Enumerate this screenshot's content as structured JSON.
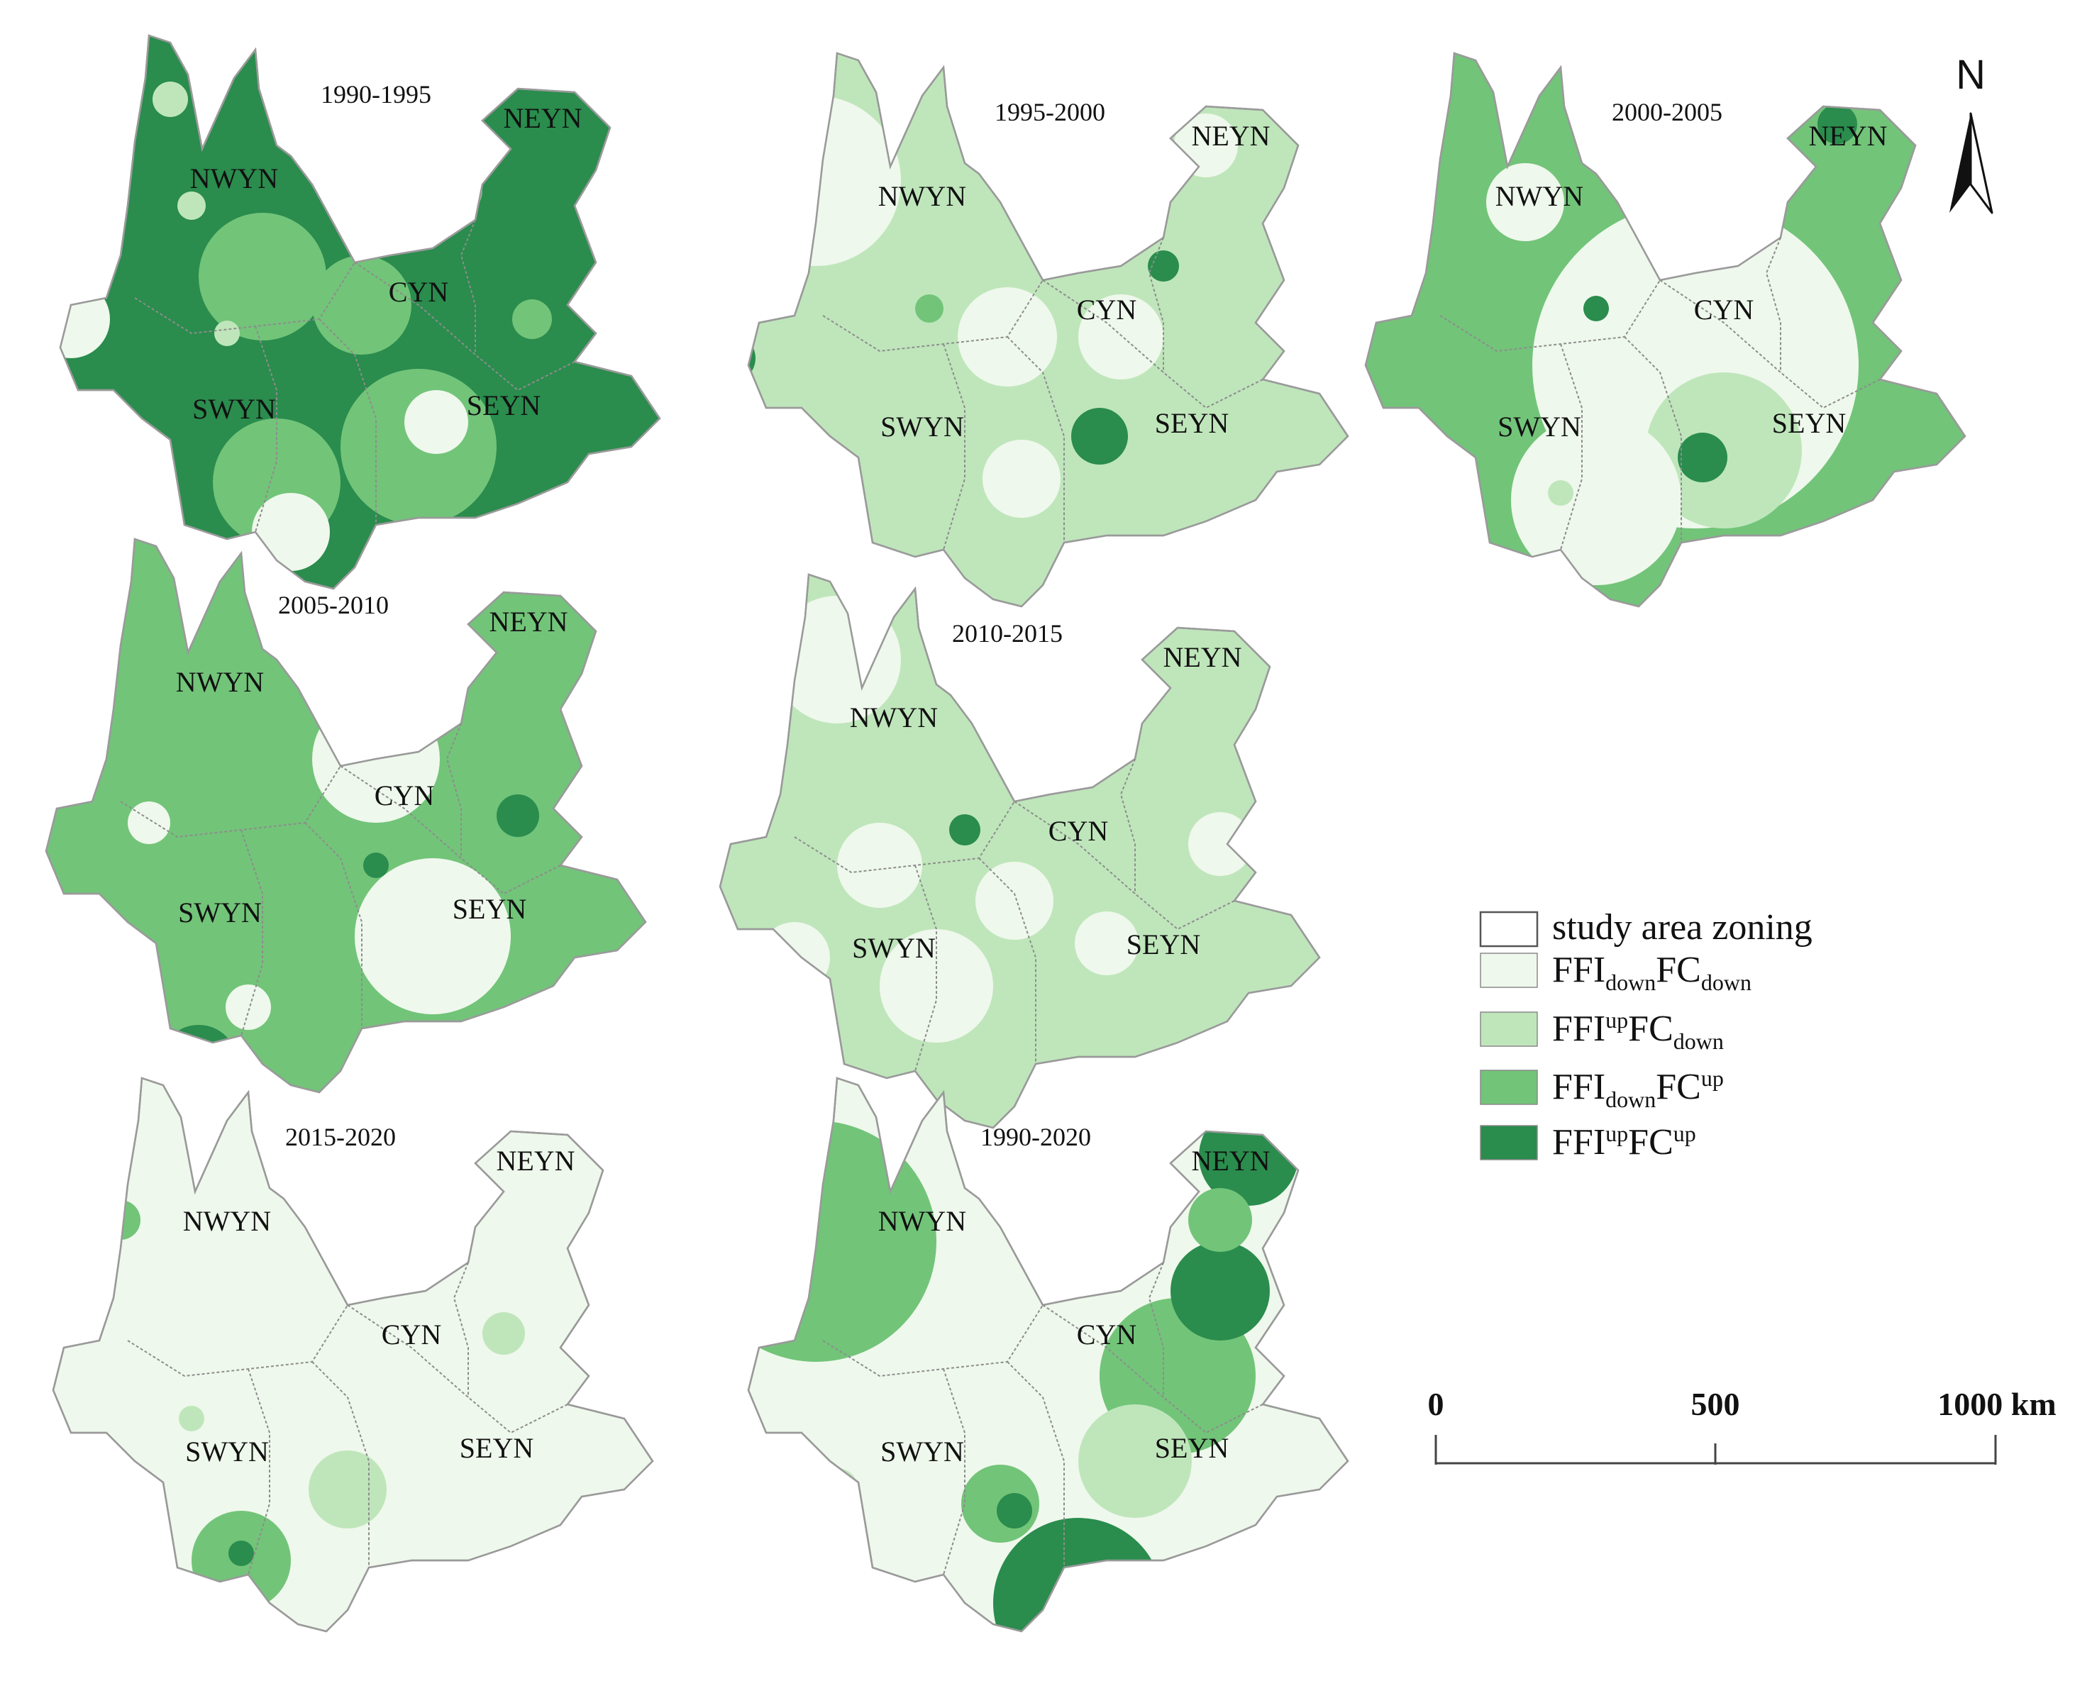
{
  "colors": {
    "fdown_fcdown": "#eff8ec",
    "fup_fcdown": "#bfe6bb",
    "fdown_fcup": "#72c479",
    "fup_fcup": "#2a8c4d",
    "zoning": "#ffffff",
    "outline": "#9a9a9a"
  },
  "maps": [
    {
      "period": "1990-1995",
      "base": "fup_fcup",
      "zones": [
        "NWYN",
        "NEYN",
        "CYN",
        "SWYN",
        "SEYN"
      ]
    },
    {
      "period": "1995-2000",
      "base": "fup_fcdown",
      "zones": [
        "NWYN",
        "NEYN",
        "CYN",
        "SWYN",
        "SEYN"
      ]
    },
    {
      "period": "2000-2005",
      "base": "fdown_fcup",
      "zones": [
        "NWYN",
        "NEYN",
        "CYN",
        "SWYN",
        "SEYN"
      ]
    },
    {
      "period": "2005-2010",
      "base": "fdown_fcup",
      "zones": [
        "NWYN",
        "NEYN",
        "CYN",
        "SWYN",
        "SEYN"
      ]
    },
    {
      "period": "2010-2015",
      "base": "fup_fcdown",
      "zones": [
        "NWYN",
        "NEYN",
        "CYN",
        "SWYN",
        "SEYN"
      ]
    },
    {
      "period": "2015-2020",
      "base": "fdown_fcdown",
      "zones": [
        "NWYN",
        "NEYN",
        "CYN",
        "SWYN",
        "SEYN"
      ]
    },
    {
      "period": "1990-2020",
      "base": "fdown_fcdown",
      "zones": [
        "NWYN",
        "NEYN",
        "CYN",
        "SWYN",
        "SEYN"
      ]
    }
  ],
  "legend": {
    "zoning": "study area zoning",
    "items": [
      {
        "key": "fdown_fcdown",
        "a": "FFI",
        "b": "down",
        "b_pos": "sub",
        "c": "FC",
        "d": "down",
        "d_pos": "sub"
      },
      {
        "key": "fup_fcdown",
        "a": "FFI",
        "b": "up",
        "b_pos": "super",
        "c": "FC",
        "d": "down",
        "d_pos": "sub"
      },
      {
        "key": "fdown_fcup",
        "a": "FFI",
        "b": "down",
        "b_pos": "sub",
        "c": "FC",
        "d": "up",
        "d_pos": "super"
      },
      {
        "key": "fup_fcup",
        "a": "FFI",
        "b": "up",
        "b_pos": "super",
        "c": "FC",
        "d": "up",
        "d_pos": "super"
      }
    ]
  },
  "scale_bar": {
    "ticks": [
      "0",
      "500",
      "1000 km"
    ]
  },
  "north_arrow": {
    "label": "N",
    "icon": "north-arrow-icon"
  }
}
